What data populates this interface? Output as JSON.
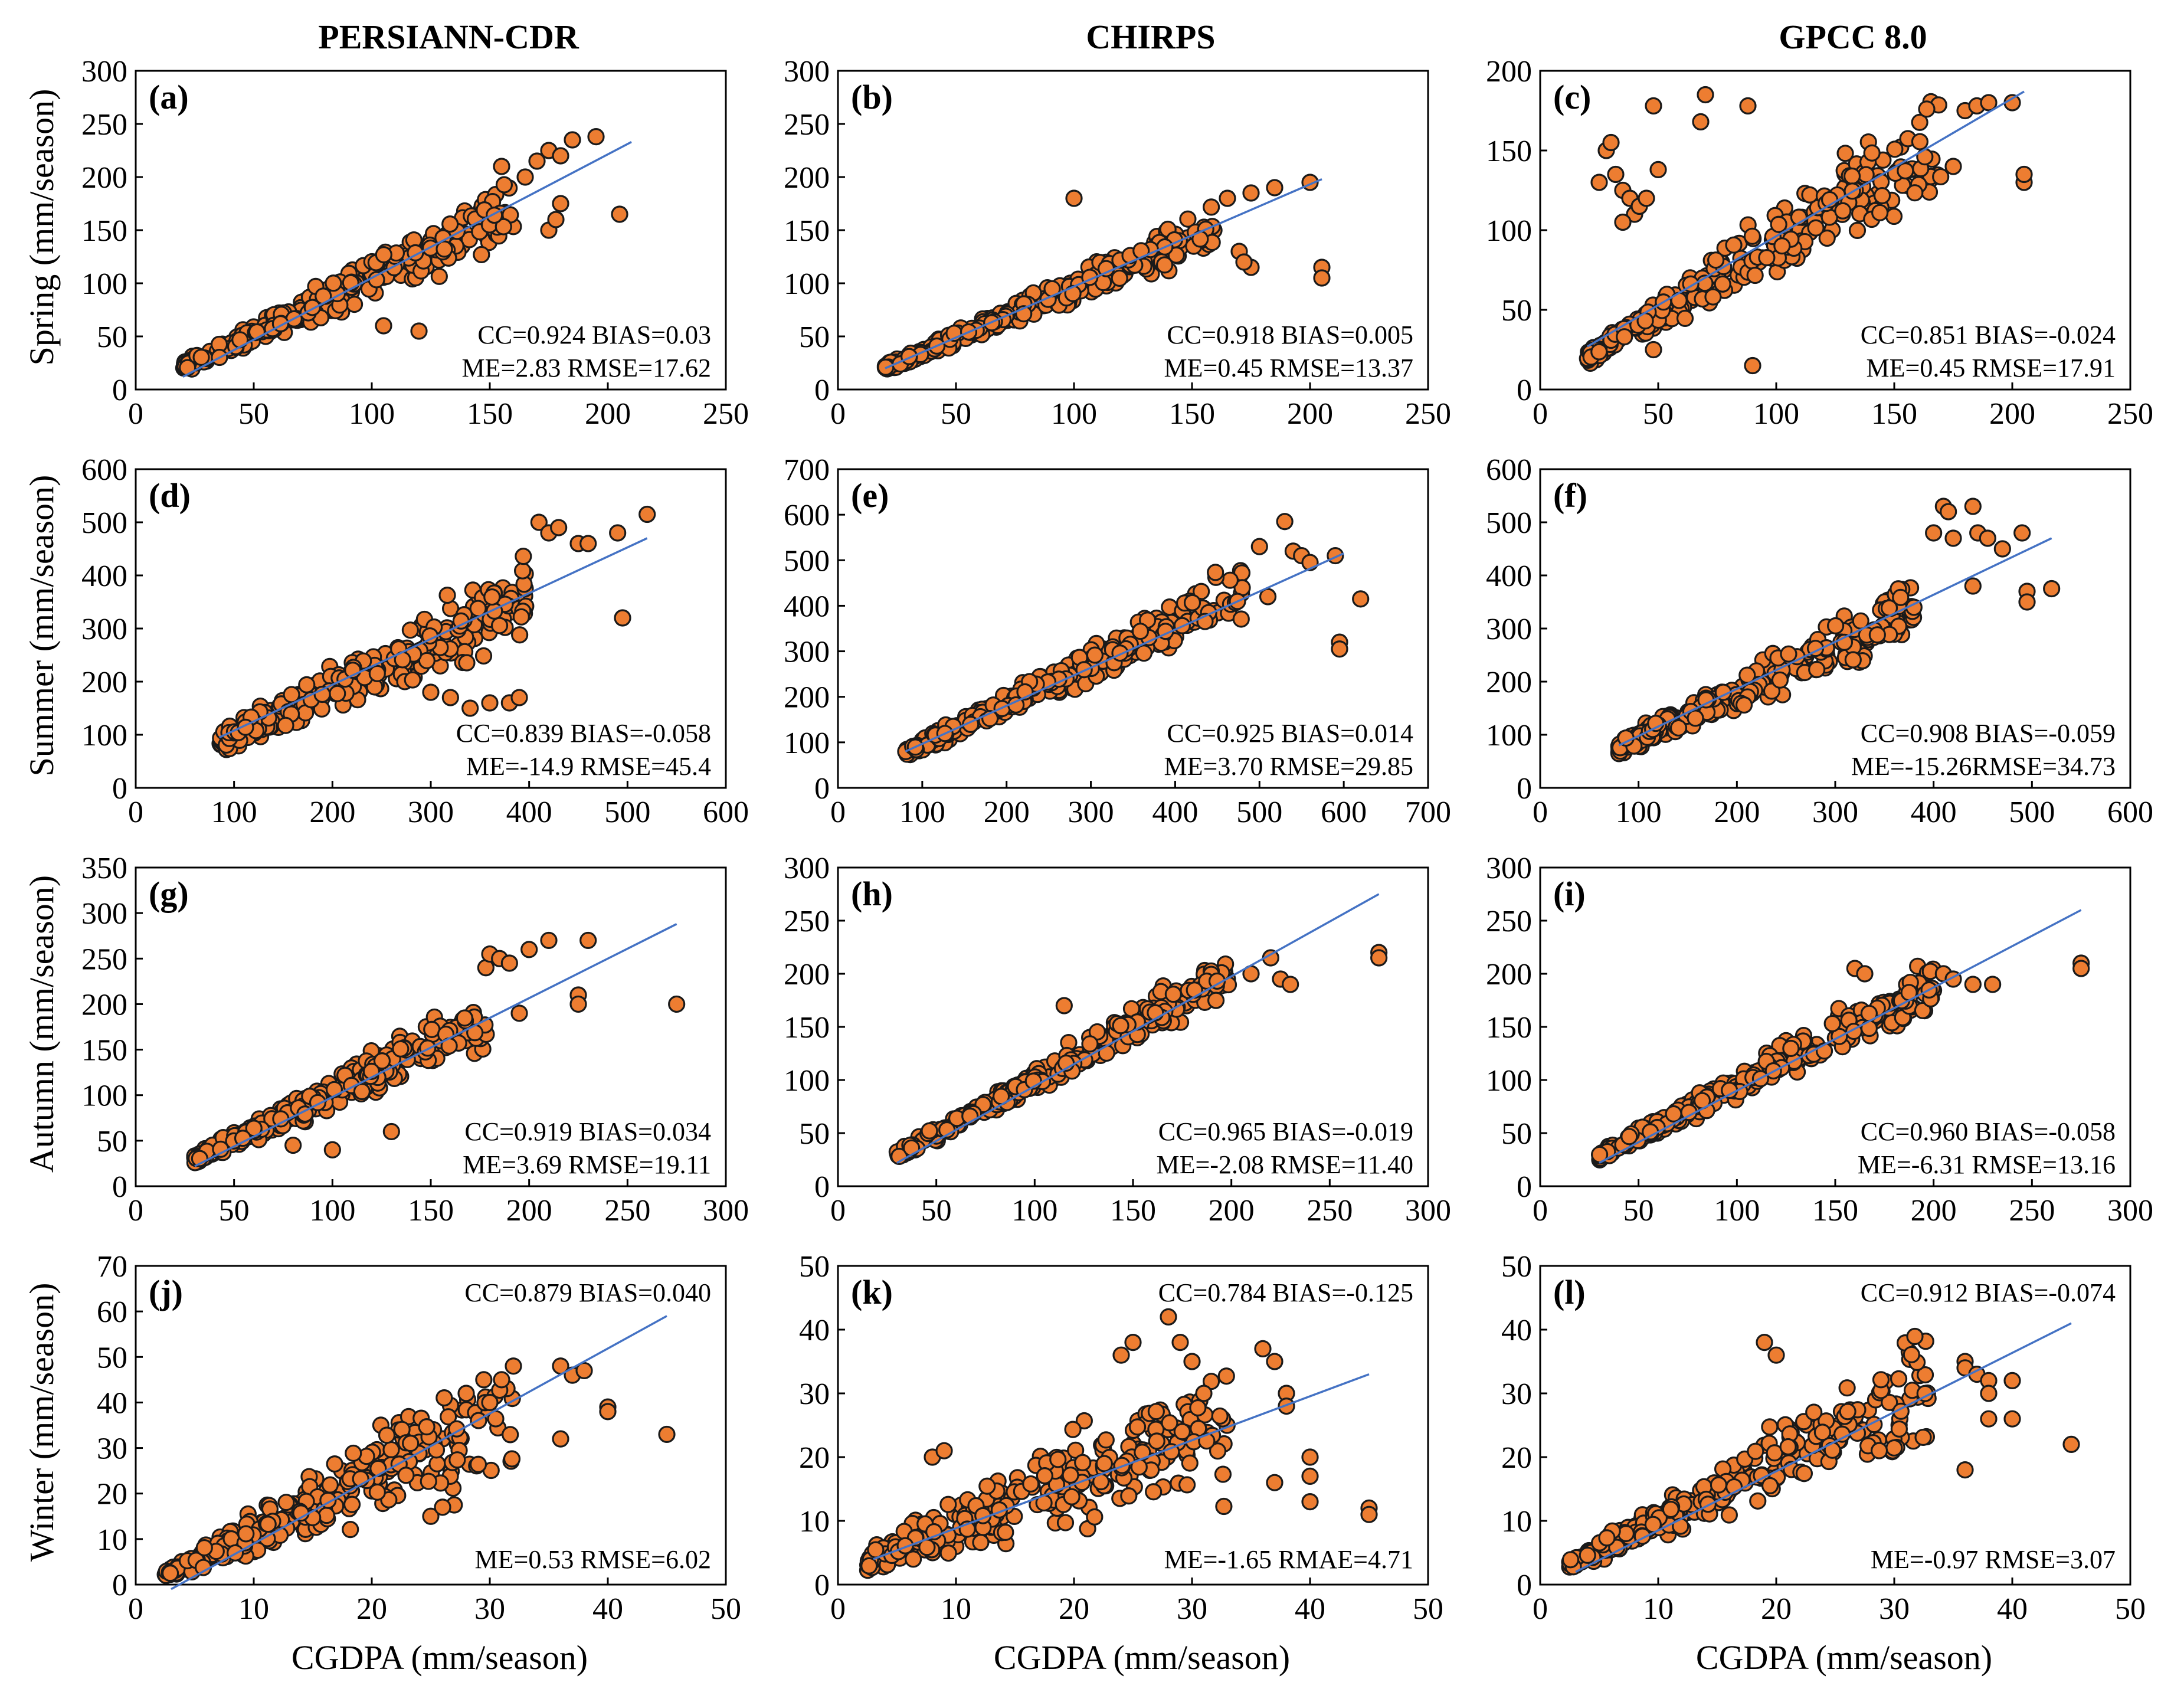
{
  "chart_data": {
    "type": "scatter",
    "columns": [
      "PERSIANN-CDR",
      "CHIRPS",
      "GPCC 8.0"
    ],
    "rows": [
      "Spring (mm/season)",
      "Summer (mm/season)",
      "Autumn (mm/season)",
      "Winter (mm/season)"
    ],
    "xlabel": "CGDPA (mm/season)",
    "marker_color": "#ED7D31",
    "fit_line_color": "#4472C4",
    "panels": [
      {
        "label": "(a)",
        "xlim": [
          0,
          250
        ],
        "ylim": [
          0,
          300
        ],
        "xticks": [
          0,
          50,
          100,
          150,
          200,
          250
        ],
        "yticks": [
          0,
          50,
          100,
          150,
          200,
          250,
          300
        ],
        "stats": [
          "CC=0.924  BIAS=0.03",
          "ME=2.83   RMSE=17.62"
        ],
        "stats_pos": "bottom",
        "fit": {
          "x": [
            20,
            210
          ],
          "y": [
            12,
            233
          ]
        },
        "seed": 11,
        "xmin": 20,
        "xmax": 160,
        "a": 0.0,
        "b": 1.05,
        "noise": 0.12,
        "extra": [
          [
            155,
            210
          ],
          [
            165,
            200
          ],
          [
            170,
            215
          ],
          [
            175,
            225
          ],
          [
            180,
            220
          ],
          [
            185,
            235
          ],
          [
            195,
            238
          ],
          [
            175,
            150
          ],
          [
            178,
            160
          ],
          [
            180,
            175
          ],
          [
            205,
            165
          ],
          [
            120,
            55
          ],
          [
            105,
            60
          ]
        ]
      },
      {
        "label": "(b)",
        "xlim": [
          0,
          250
        ],
        "ylim": [
          0,
          300
        ],
        "xticks": [
          0,
          50,
          100,
          150,
          200,
          250
        ],
        "yticks": [
          0,
          50,
          100,
          150,
          200,
          250,
          300
        ],
        "stats": [
          "CC=0.918  BIAS=0.005",
          "ME=0.45   RMSE=13.37"
        ],
        "stats_pos": "bottom",
        "fit": {
          "x": [
            20,
            205
          ],
          "y": [
            20,
            198
          ]
        },
        "seed": 23,
        "xmin": 20,
        "xmax": 160,
        "a": 2.0,
        "b": 0.93,
        "noise": 0.1,
        "extra": [
          [
            100,
            180
          ],
          [
            165,
            180
          ],
          [
            175,
            185
          ],
          [
            185,
            190
          ],
          [
            200,
            195
          ],
          [
            170,
            130
          ],
          [
            175,
            115
          ],
          [
            172,
            120
          ],
          [
            205,
            115
          ],
          [
            205,
            105
          ]
        ]
      },
      {
        "label": "(c)",
        "xlim": [
          0,
          250
        ],
        "ylim": [
          0,
          200
        ],
        "xticks": [
          0,
          50,
          100,
          150,
          200,
          250
        ],
        "yticks": [
          0,
          50,
          100,
          150,
          200
        ],
        "stats": [
          "CC=0.851  BIAS=-0.024",
          "ME=0.45   RMSE=17.91"
        ],
        "stats_pos": "bottom",
        "fit": {
          "x": [
            20,
            205
          ],
          "y": [
            27,
            187
          ]
        },
        "seed": 37,
        "xmin": 20,
        "xmax": 170,
        "a": 2.0,
        "b": 0.9,
        "noise": 0.14,
        "extra": [
          [
            25,
            130
          ],
          [
            28,
            150
          ],
          [
            30,
            155
          ],
          [
            32,
            135
          ],
          [
            35,
            125
          ],
          [
            38,
            120
          ],
          [
            40,
            110
          ],
          [
            35,
            105
          ],
          [
            42,
            115
          ],
          [
            45,
            120
          ],
          [
            50,
            138
          ],
          [
            48,
            178
          ],
          [
            68,
            168
          ],
          [
            70,
            185
          ],
          [
            88,
            178
          ],
          [
            180,
            175
          ],
          [
            185,
            178
          ],
          [
            190,
            180
          ],
          [
            200,
            180
          ],
          [
            205,
            130
          ],
          [
            205,
            135
          ],
          [
            175,
            140
          ],
          [
            90,
            15
          ],
          [
            48,
            25
          ]
        ]
      },
      {
        "label": "(d)",
        "xlim": [
          0,
          600
        ],
        "ylim": [
          0,
          600
        ],
        "xticks": [
          0,
          100,
          200,
          300,
          400,
          500,
          600
        ],
        "yticks": [
          0,
          100,
          200,
          300,
          400,
          500,
          600
        ],
        "stats": [
          "CC=0.839  BIAS=-0.058",
          "ME=-14.9   RMSE=45.4"
        ],
        "stats_pos": "bottom",
        "fit": {
          "x": [
            85,
            520
          ],
          "y": [
            95,
            470
          ]
        },
        "seed": 41,
        "xmin": 85,
        "xmax": 400,
        "a": 10.0,
        "b": 0.88,
        "noise": 0.14,
        "extra": [
          [
            410,
            500
          ],
          [
            420,
            480
          ],
          [
            430,
            490
          ],
          [
            450,
            460
          ],
          [
            460,
            460
          ],
          [
            490,
            480
          ],
          [
            520,
            515
          ],
          [
            495,
            320
          ],
          [
            360,
            160
          ],
          [
            380,
            160
          ],
          [
            390,
            170
          ],
          [
            300,
            180
          ],
          [
            320,
            170
          ],
          [
            340,
            150
          ]
        ]
      },
      {
        "label": "(e)",
        "xlim": [
          0,
          700
        ],
        "ylim": [
          0,
          700
        ],
        "xticks": [
          0,
          100,
          200,
          300,
          400,
          500,
          600,
          700
        ],
        "yticks": [
          0,
          100,
          200,
          300,
          400,
          500,
          600,
          700
        ],
        "stats": [
          "CC=0.925  BIAS=0.014",
          "ME=3.70   RMSE=29.85"
        ],
        "stats_pos": "bottom",
        "fit": {
          "x": [
            80,
            600
          ],
          "y": [
            80,
            515
          ]
        },
        "seed": 53,
        "xmin": 80,
        "xmax": 480,
        "a": 5.0,
        "b": 0.9,
        "noise": 0.1,
        "extra": [
          [
            500,
            530
          ],
          [
            530,
            585
          ],
          [
            540,
            520
          ],
          [
            550,
            510
          ],
          [
            560,
            495
          ],
          [
            590,
            510
          ],
          [
            595,
            320
          ],
          [
            595,
            305
          ],
          [
            620,
            415
          ],
          [
            510,
            420
          ]
        ]
      },
      {
        "label": "(f)",
        "xlim": [
          0,
          600
        ],
        "ylim": [
          0,
          600
        ],
        "xticks": [
          0,
          100,
          200,
          300,
          400,
          500,
          600
        ],
        "yticks": [
          0,
          100,
          200,
          300,
          400,
          500,
          600
        ],
        "stats": [
          "CC=0.908  BIAS=-0.059",
          "ME=-15.26RMSE=34.73"
        ],
        "stats_pos": "bottom",
        "fit": {
          "x": [
            80,
            520
          ],
          "y": [
            80,
            470
          ]
        },
        "seed": 67,
        "xmin": 80,
        "xmax": 380,
        "a": 5.0,
        "b": 0.88,
        "noise": 0.12,
        "extra": [
          [
            400,
            480
          ],
          [
            410,
            530
          ],
          [
            415,
            520
          ],
          [
            420,
            470
          ],
          [
            440,
            530
          ],
          [
            445,
            480
          ],
          [
            455,
            470
          ],
          [
            470,
            450
          ],
          [
            490,
            480
          ],
          [
            495,
            370
          ],
          [
            495,
            350
          ],
          [
            520,
            375
          ],
          [
            440,
            380
          ],
          [
            380,
            340
          ]
        ]
      },
      {
        "label": "(g)",
        "xlim": [
          0,
          300
        ],
        "ylim": [
          0,
          350
        ],
        "xticks": [
          0,
          50,
          100,
          150,
          200,
          250,
          300
        ],
        "yticks": [
          0,
          50,
          100,
          150,
          200,
          250,
          300,
          350
        ],
        "stats": [
          "CC=0.919  BIAS=0.034",
          "ME=3.69   RMSE=19.11"
        ],
        "stats_pos": "bottom",
        "fit": {
          "x": [
            30,
            275
          ],
          "y": [
            22,
            288
          ]
        },
        "seed": 71,
        "xmin": 30,
        "xmax": 180,
        "a": 0.0,
        "b": 1.02,
        "noise": 0.12,
        "extra": [
          [
            178,
            240
          ],
          [
            180,
            255
          ],
          [
            185,
            250
          ],
          [
            190,
            245
          ],
          [
            200,
            260
          ],
          [
            210,
            270
          ],
          [
            230,
            270
          ],
          [
            225,
            210
          ],
          [
            225,
            200
          ],
          [
            275,
            200
          ],
          [
            195,
            190
          ],
          [
            130,
            60
          ],
          [
            80,
            45
          ],
          [
            100,
            40
          ]
        ]
      },
      {
        "label": "(h)",
        "xlim": [
          0,
          300
        ],
        "ylim": [
          0,
          300
        ],
        "xticks": [
          0,
          50,
          100,
          150,
          200,
          250,
          300
        ],
        "yticks": [
          0,
          50,
          100,
          150,
          200,
          250,
          300
        ],
        "stats": [
          "CC=0.965  BIAS=-0.019",
          "ME=-2.08  RMSE=11.40"
        ],
        "stats_pos": "bottom",
        "fit": {
          "x": [
            30,
            275
          ],
          "y": [
            22,
            275
          ]
        },
        "seed": 83,
        "xmin": 30,
        "xmax": 200,
        "a": 0.0,
        "b": 1.0,
        "noise": 0.08,
        "extra": [
          [
            210,
            200
          ],
          [
            220,
            215
          ],
          [
            225,
            195
          ],
          [
            230,
            190
          ],
          [
            275,
            220
          ],
          [
            275,
            215
          ],
          [
            115,
            170
          ]
        ]
      },
      {
        "label": "(i)",
        "xlim": [
          0,
          300
        ],
        "ylim": [
          0,
          300
        ],
        "xticks": [
          0,
          50,
          100,
          150,
          200,
          250,
          300
        ],
        "yticks": [
          0,
          50,
          100,
          150,
          200,
          250,
          300
        ],
        "stats": [
          "CC=0.960  BIAS=-0.058",
          "ME=-6.31  RMSE=13.16"
        ],
        "stats_pos": "bottom",
        "fit": {
          "x": [
            30,
            275
          ],
          "y": [
            22,
            260
          ]
        },
        "seed": 97,
        "xmin": 30,
        "xmax": 200,
        "a": 0.0,
        "b": 0.95,
        "noise": 0.09,
        "extra": [
          [
            205,
            200
          ],
          [
            210,
            195
          ],
          [
            220,
            190
          ],
          [
            230,
            190
          ],
          [
            275,
            210
          ],
          [
            275,
            205
          ],
          [
            160,
            205
          ],
          [
            165,
            200
          ]
        ]
      },
      {
        "label": "(j)",
        "xlim": [
          0,
          50
        ],
        "ylim": [
          0,
          70
        ],
        "xticks": [
          0,
          10,
          20,
          30,
          40,
          50
        ],
        "yticks": [
          0,
          10,
          20,
          30,
          40,
          50,
          60,
          70
        ],
        "stats": [
          "CC=0.879  BIAS=0.040",
          "ME=0.53     RMSE=6.02"
        ],
        "stats_pos": "split",
        "fit": {
          "x": [
            3,
            45
          ],
          "y": [
            -1,
            59
          ]
        },
        "seed": 101,
        "xmin": 2.5,
        "xmax": 32,
        "a": -1.0,
        "b": 1.25,
        "noise": 0.25,
        "extra": [
          [
            36,
            48
          ],
          [
            37,
            46
          ],
          [
            38,
            47
          ],
          [
            40,
            39
          ],
          [
            40,
            38
          ],
          [
            36,
            32
          ],
          [
            45,
            33
          ],
          [
            28,
            42
          ],
          [
            30,
            40
          ],
          [
            31,
            45
          ],
          [
            32,
            48
          ],
          [
            25,
            15
          ],
          [
            26,
            17
          ]
        ]
      },
      {
        "label": "(k)",
        "xlim": [
          0,
          50
        ],
        "ylim": [
          0,
          50
        ],
        "xticks": [
          0,
          10,
          20,
          30,
          40,
          50
        ],
        "yticks": [
          0,
          10,
          20,
          30,
          40,
          50
        ],
        "stats": [
          "CC=0.784  BIAS=-0.125",
          "ME=-1.65   RMAE=4.71"
        ],
        "stats_pos": "split",
        "fit": {
          "x": [
            3,
            45
          ],
          "y": [
            4,
            33
          ]
        },
        "seed": 113,
        "xmin": 2.5,
        "xmax": 33,
        "a": 2.0,
        "b": 0.72,
        "noise": 0.3,
        "extra": [
          [
            28,
            42
          ],
          [
            29,
            38
          ],
          [
            30,
            35
          ],
          [
            31,
            30
          ],
          [
            36,
            37
          ],
          [
            37,
            35
          ],
          [
            37,
            16
          ],
          [
            38,
            30
          ],
          [
            38,
            28
          ],
          [
            40,
            20
          ],
          [
            40,
            17
          ],
          [
            40,
            13
          ],
          [
            45,
            12
          ],
          [
            45,
            11
          ],
          [
            25,
            38
          ],
          [
            24,
            36
          ],
          [
            8,
            20
          ],
          [
            9,
            21
          ]
        ]
      },
      {
        "label": "(l)",
        "xlim": [
          0,
          50
        ],
        "ylim": [
          0,
          50
        ],
        "xticks": [
          0,
          10,
          20,
          30,
          40,
          50
        ],
        "yticks": [
          0,
          10,
          20,
          30,
          40,
          50
        ],
        "stats": [
          "CC=0.912  BIAS=-0.074",
          "ME=-0.97  RMSE=3.07"
        ],
        "stats_pos": "split",
        "fit": {
          "x": [
            3,
            45
          ],
          "y": [
            2,
            41
          ]
        },
        "seed": 127,
        "xmin": 2.5,
        "xmax": 33,
        "a": 1.0,
        "b": 0.9,
        "noise": 0.18,
        "extra": [
          [
            36,
            35
          ],
          [
            36,
            34
          ],
          [
            37,
            33
          ],
          [
            38,
            32
          ],
          [
            38,
            30
          ],
          [
            38,
            26
          ],
          [
            40,
            32
          ],
          [
            40,
            26
          ],
          [
            36,
            18
          ],
          [
            45,
            22
          ],
          [
            19,
            38
          ],
          [
            20,
            36
          ]
        ]
      }
    ]
  }
}
